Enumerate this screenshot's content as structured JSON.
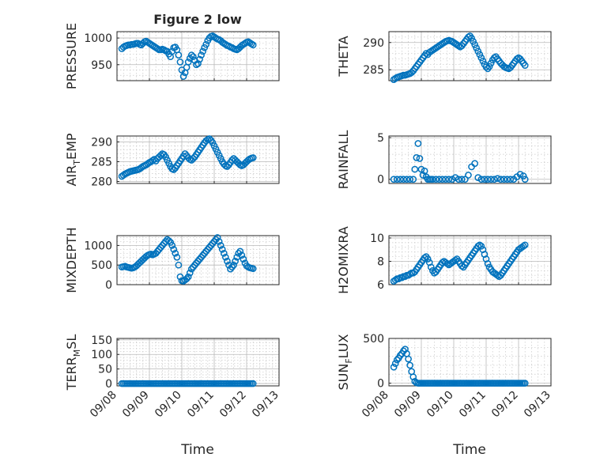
{
  "figure": {
    "title": "Figure 2 low",
    "marker_color": "#0072BD"
  },
  "chart_data": [
    {
      "type": "scatter",
      "ylabel": "PRESSURE",
      "ylabel_sub": "",
      "ylabel_tail": "",
      "xlabel": "",
      "xlim": [
        0,
        5
      ],
      "ylim": [
        920,
        1012
      ],
      "yticks": [
        950,
        1000
      ],
      "xticklabels": [],
      "x": [
        0.15,
        0.2,
        0.25,
        0.3,
        0.35,
        0.4,
        0.45,
        0.5,
        0.55,
        0.6,
        0.65,
        0.7,
        0.75,
        0.8,
        0.85,
        0.9,
        0.95,
        1.0,
        1.05,
        1.1,
        1.15,
        1.2,
        1.25,
        1.3,
        1.35,
        1.4,
        1.45,
        1.5,
        1.55,
        1.6,
        1.65,
        1.7,
        1.75,
        1.8,
        1.85,
        1.9,
        1.95,
        2.0,
        2.05,
        2.1,
        2.15,
        2.2,
        2.25,
        2.3,
        2.35,
        2.4,
        2.45,
        2.5,
        2.55,
        2.6,
        2.65,
        2.7,
        2.75,
        2.8,
        2.85,
        2.9,
        2.95,
        3.0,
        3.05,
        3.1,
        3.15,
        3.2,
        3.25,
        3.3,
        3.35,
        3.4,
        3.45,
        3.5,
        3.55,
        3.6,
        3.65,
        3.7,
        3.75,
        3.8,
        3.85,
        3.9,
        3.95,
        4.0,
        4.05,
        4.1,
        4.15,
        4.2
      ],
      "y": [
        980,
        983,
        985,
        986,
        987,
        987,
        988,
        988,
        989,
        990,
        990,
        988,
        987,
        990,
        993,
        994,
        992,
        990,
        988,
        986,
        984,
        982,
        980,
        978,
        978,
        979,
        978,
        976,
        975,
        970,
        965,
        975,
        982,
        983,
        978,
        968,
        955,
        940,
        928,
        935,
        945,
        955,
        962,
        968,
        965,
        958,
        950,
        952,
        960,
        968,
        975,
        982,
        988,
        995,
        1000,
        1003,
        1004,
        1002,
        1000,
        998,
        997,
        995,
        992,
        990,
        988,
        986,
        985,
        983,
        982,
        980,
        979,
        978,
        980,
        983,
        986,
        988,
        990,
        992,
        993,
        991,
        989,
        987
      ]
    },
    {
      "type": "scatter",
      "ylabel": "THETA",
      "ylabel_sub": "",
      "ylabel_tail": "",
      "xlabel": "",
      "xlim": [
        0,
        5
      ],
      "ylim": [
        283,
        292
      ],
      "yticks": [
        285,
        290
      ],
      "xticklabels": [],
      "x": [
        0.15,
        0.2,
        0.25,
        0.3,
        0.35,
        0.4,
        0.45,
        0.5,
        0.55,
        0.6,
        0.65,
        0.7,
        0.75,
        0.8,
        0.85,
        0.9,
        0.95,
        1.0,
        1.05,
        1.1,
        1.15,
        1.2,
        1.25,
        1.3,
        1.35,
        1.4,
        1.45,
        1.5,
        1.55,
        1.6,
        1.65,
        1.7,
        1.75,
        1.8,
        1.85,
        1.9,
        1.95,
        2.0,
        2.05,
        2.1,
        2.15,
        2.2,
        2.25,
        2.3,
        2.35,
        2.4,
        2.45,
        2.5,
        2.55,
        2.6,
        2.65,
        2.7,
        2.75,
        2.8,
        2.85,
        2.9,
        2.95,
        3.0,
        3.05,
        3.1,
        3.15,
        3.2,
        3.25,
        3.3,
        3.35,
        3.4,
        3.45,
        3.5,
        3.55,
        3.6,
        3.65,
        3.7,
        3.75,
        3.8,
        3.85,
        3.9,
        3.95,
        4.0,
        4.05,
        4.1,
        4.15,
        4.2
      ],
      "y": [
        283.2,
        283.4,
        283.6,
        283.7,
        283.8,
        283.9,
        284.0,
        284.0,
        284.1,
        284.2,
        284.3,
        284.5,
        284.8,
        285.2,
        285.6,
        286.0,
        286.4,
        286.8,
        287.2,
        287.6,
        288.0,
        287.8,
        288.2,
        288.4,
        288.6,
        288.8,
        289.0,
        289.2,
        289.4,
        289.6,
        289.8,
        290.0,
        290.2,
        290.3,
        290.4,
        290.3,
        290.2,
        290.0,
        289.8,
        289.6,
        289.4,
        289.2,
        289.4,
        289.8,
        290.2,
        290.6,
        291.0,
        291.2,
        290.8,
        290.2,
        289.6,
        289.0,
        288.4,
        287.8,
        287.2,
        286.6,
        286.0,
        285.5,
        285.2,
        285.6,
        286.2,
        286.8,
        287.2,
        287.4,
        287.0,
        286.6,
        286.2,
        285.9,
        285.6,
        285.4,
        285.3,
        285.2,
        285.4,
        285.8,
        286.2,
        286.6,
        287.0,
        287.2,
        287.0,
        286.6,
        286.2,
        285.8
      ]
    },
    {
      "type": "scatter",
      "ylabel": "AIR",
      "ylabel_sub": "T",
      "ylabel_tail": "EMP",
      "xlabel": "",
      "xlim": [
        0,
        5
      ],
      "ylim": [
        279.5,
        291.5
      ],
      "yticks": [
        280,
        285,
        290
      ],
      "xticklabels": [],
      "x": [
        0.15,
        0.2,
        0.25,
        0.3,
        0.35,
        0.4,
        0.45,
        0.5,
        0.55,
        0.6,
        0.65,
        0.7,
        0.75,
        0.8,
        0.85,
        0.9,
        0.95,
        1.0,
        1.05,
        1.1,
        1.15,
        1.2,
        1.25,
        1.3,
        1.35,
        1.4,
        1.45,
        1.5,
        1.55,
        1.6,
        1.65,
        1.7,
        1.75,
        1.8,
        1.85,
        1.9,
        1.95,
        2.0,
        2.05,
        2.1,
        2.15,
        2.2,
        2.25,
        2.3,
        2.35,
        2.4,
        2.45,
        2.5,
        2.55,
        2.6,
        2.65,
        2.7,
        2.75,
        2.8,
        2.85,
        2.9,
        2.95,
        3.0,
        3.05,
        3.1,
        3.15,
        3.2,
        3.25,
        3.3,
        3.35,
        3.4,
        3.45,
        3.5,
        3.55,
        3.6,
        3.65,
        3.7,
        3.75,
        3.8,
        3.85,
        3.9,
        3.95,
        4.0,
        4.05,
        4.1,
        4.15,
        4.2
      ],
      "y": [
        281.3,
        281.6,
        281.9,
        282.1,
        282.3,
        282.5,
        282.6,
        282.7,
        282.8,
        282.9,
        283.0,
        283.2,
        283.5,
        283.8,
        284.0,
        284.2,
        284.5,
        284.8,
        285.0,
        285.3,
        285.6,
        285.2,
        285.8,
        286.2,
        286.6,
        287.0,
        286.8,
        286.2,
        285.4,
        284.6,
        283.8,
        283.2,
        283.0,
        283.4,
        284.0,
        284.6,
        285.2,
        285.8,
        286.4,
        287.0,
        286.5,
        286.0,
        285.6,
        285.4,
        285.8,
        286.2,
        286.8,
        287.4,
        288.0,
        288.6,
        289.2,
        289.8,
        290.3,
        290.6,
        290.8,
        290.4,
        289.8,
        289.0,
        288.2,
        287.4,
        286.6,
        285.8,
        285.0,
        284.4,
        284.0,
        283.8,
        284.2,
        284.8,
        285.4,
        285.8,
        285.4,
        285.0,
        284.6,
        284.2,
        284.0,
        284.2,
        284.6,
        285.0,
        285.4,
        285.7,
        285.9,
        286.0
      ]
    },
    {
      "type": "scatter",
      "ylabel": "RAINFALL",
      "ylabel_sub": "",
      "ylabel_tail": "",
      "xlabel": "",
      "xlim": [
        0,
        5
      ],
      "ylim": [
        -0.5,
        5.2
      ],
      "yticks": [
        0,
        5
      ],
      "xticklabels": [],
      "x": [
        0.15,
        0.25,
        0.35,
        0.45,
        0.55,
        0.65,
        0.75,
        0.8,
        0.85,
        0.9,
        0.95,
        1.0,
        1.05,
        1.1,
        1.15,
        1.2,
        1.25,
        1.3,
        1.35,
        1.45,
        1.55,
        1.65,
        1.75,
        1.85,
        1.95,
        2.05,
        2.15,
        2.25,
        2.35,
        2.45,
        2.55,
        2.65,
        2.75,
        2.85,
        2.95,
        3.05,
        3.15,
        3.25,
        3.35,
        3.45,
        3.55,
        3.65,
        3.75,
        3.85,
        3.95,
        4.05,
        4.15,
        4.2
      ],
      "y": [
        0,
        0,
        0,
        0,
        0,
        0,
        0,
        1.2,
        2.6,
        4.3,
        2.5,
        1.2,
        0.5,
        1.0,
        0.3,
        0,
        0,
        0,
        0,
        0,
        0,
        0,
        0,
        0,
        0,
        0.2,
        0,
        0,
        0,
        0.5,
        1.5,
        1.9,
        0.2,
        0,
        0,
        0,
        0,
        0,
        0.1,
        0,
        0,
        0,
        0,
        0,
        0.3,
        0.6,
        0.4,
        0
      ]
    },
    {
      "type": "scatter",
      "ylabel": "MIXDEPTH",
      "ylabel_sub": "",
      "ylabel_tail": "",
      "xlabel": "",
      "xlim": [
        0,
        5
      ],
      "ylim": [
        0,
        1250
      ],
      "yticks": [
        0,
        500,
        1000
      ],
      "xticklabels": [],
      "x": [
        0.15,
        0.2,
        0.25,
        0.3,
        0.35,
        0.4,
        0.45,
        0.5,
        0.55,
        0.6,
        0.65,
        0.7,
        0.75,
        0.8,
        0.85,
        0.9,
        0.95,
        1.0,
        1.05,
        1.1,
        1.15,
        1.2,
        1.25,
        1.3,
        1.35,
        1.4,
        1.45,
        1.5,
        1.55,
        1.6,
        1.65,
        1.7,
        1.75,
        1.8,
        1.85,
        1.9,
        1.95,
        2.0,
        2.05,
        2.1,
        2.15,
        2.2,
        2.25,
        2.3,
        2.35,
        2.4,
        2.45,
        2.5,
        2.55,
        2.6,
        2.65,
        2.7,
        2.75,
        2.8,
        2.85,
        2.9,
        2.95,
        3.0,
        3.05,
        3.1,
        3.15,
        3.2,
        3.25,
        3.3,
        3.35,
        3.4,
        3.45,
        3.5,
        3.55,
        3.6,
        3.65,
        3.7,
        3.75,
        3.8,
        3.85,
        3.9,
        3.95,
        4.0,
        4.05,
        4.1,
        4.15,
        4.2
      ],
      "y": [
        450,
        460,
        470,
        450,
        440,
        430,
        420,
        430,
        450,
        480,
        520,
        560,
        600,
        640,
        680,
        720,
        750,
        770,
        780,
        760,
        780,
        800,
        850,
        900,
        950,
        1000,
        1050,
        1100,
        1150,
        1120,
        1080,
        1000,
        900,
        800,
        700,
        500,
        200,
        100,
        90,
        120,
        150,
        200,
        300,
        400,
        450,
        500,
        550,
        600,
        650,
        700,
        750,
        800,
        850,
        900,
        950,
        1000,
        1050,
        1100,
        1150,
        1200,
        1100,
        1000,
        900,
        800,
        700,
        600,
        500,
        400,
        450,
        500,
        600,
        700,
        800,
        850,
        750,
        650,
        550,
        480,
        450,
        430,
        420,
        410
      ]
    },
    {
      "type": "scatter",
      "ylabel": "H2OMIXRA",
      "ylabel_sub": "",
      "ylabel_tail": "",
      "xlabel": "",
      "xlim": [
        0,
        5
      ],
      "ylim": [
        6,
        10.2
      ],
      "yticks": [
        6,
        8,
        10
      ],
      "xticklabels": [],
      "x": [
        0.15,
        0.2,
        0.25,
        0.3,
        0.35,
        0.4,
        0.45,
        0.5,
        0.55,
        0.6,
        0.65,
        0.7,
        0.75,
        0.8,
        0.85,
        0.9,
        0.95,
        1.0,
        1.05,
        1.1,
        1.15,
        1.2,
        1.25,
        1.3,
        1.35,
        1.4,
        1.45,
        1.5,
        1.55,
        1.6,
        1.65,
        1.7,
        1.75,
        1.8,
        1.85,
        1.9,
        1.95,
        2.0,
        2.05,
        2.1,
        2.15,
        2.2,
        2.25,
        2.3,
        2.35,
        2.4,
        2.45,
        2.5,
        2.55,
        2.6,
        2.65,
        2.7,
        2.75,
        2.8,
        2.85,
        2.9,
        2.95,
        3.0,
        3.05,
        3.1,
        3.15,
        3.2,
        3.25,
        3.3,
        3.35,
        3.4,
        3.45,
        3.5,
        3.55,
        3.6,
        3.65,
        3.7,
        3.75,
        3.8,
        3.85,
        3.9,
        3.95,
        4.0,
        4.05,
        4.1,
        4.15,
        4.2
      ],
      "y": [
        6.3,
        6.4,
        6.5,
        6.5,
        6.6,
        6.6,
        6.7,
        6.7,
        6.8,
        6.8,
        6.9,
        7.0,
        7.0,
        7.1,
        7.3,
        7.5,
        7.7,
        7.9,
        8.1,
        8.3,
        8.4,
        8.2,
        7.9,
        7.5,
        7.2,
        7.0,
        7.1,
        7.3,
        7.5,
        7.7,
        7.9,
        8.0,
        7.9,
        7.8,
        7.7,
        7.8,
        7.9,
        8.0,
        8.1,
        8.2,
        8.0,
        7.8,
        7.6,
        7.5,
        7.7,
        7.9,
        8.1,
        8.3,
        8.5,
        8.7,
        8.9,
        9.1,
        9.3,
        9.4,
        9.3,
        9.0,
        8.6,
        8.2,
        7.8,
        7.5,
        7.3,
        7.1,
        7.0,
        6.9,
        6.8,
        6.7,
        6.8,
        7.0,
        7.2,
        7.4,
        7.6,
        7.8,
        8.0,
        8.2,
        8.4,
        8.6,
        8.8,
        9.0,
        9.1,
        9.2,
        9.3,
        9.4
      ]
    },
    {
      "type": "scatter",
      "ylabel": "TERR",
      "ylabel_sub": "M",
      "ylabel_tail": "SL",
      "xlabel": "",
      "xlim": [
        0,
        5
      ],
      "ylim": [
        -8,
        155
      ],
      "yticks": [
        0,
        50,
        100,
        150
      ],
      "xticklabels": [
        "09/08",
        "09/09",
        "09/10",
        "09/11",
        "09/12",
        "09/13"
      ],
      "x": [
        0.15,
        0.2,
        0.25,
        0.3,
        0.35,
        0.4,
        0.45,
        0.5,
        0.55,
        0.6,
        0.65,
        0.7,
        0.75,
        0.8,
        0.85,
        0.9,
        0.95,
        1.0,
        1.05,
        1.1,
        1.15,
        1.2,
        1.25,
        1.3,
        1.35,
        1.4,
        1.45,
        1.5,
        1.55,
        1.6,
        1.65,
        1.7,
        1.75,
        1.8,
        1.85,
        1.9,
        1.95,
        2.0,
        2.05,
        2.1,
        2.15,
        2.2,
        2.25,
        2.3,
        2.35,
        2.4,
        2.45,
        2.5,
        2.55,
        2.6,
        2.65,
        2.7,
        2.75,
        2.8,
        2.85,
        2.9,
        2.95,
        3.0,
        3.05,
        3.1,
        3.15,
        3.2,
        3.25,
        3.3,
        3.35,
        3.4,
        3.45,
        3.5,
        3.55,
        3.6,
        3.65,
        3.7,
        3.75,
        3.8,
        3.85,
        3.9,
        3.95,
        4.0,
        4.05,
        4.1,
        4.15,
        4.2
      ],
      "y": [
        0,
        0,
        0,
        0,
        0,
        0,
        0,
        0,
        0,
        0,
        0,
        0,
        0,
        0,
        0,
        0,
        0,
        0,
        0,
        0,
        0,
        0,
        0,
        0,
        0,
        0,
        0,
        0,
        0,
        0,
        0,
        0,
        0,
        0,
        0,
        0,
        0,
        0,
        0,
        0,
        0,
        0,
        0,
        0,
        0,
        0,
        0,
        0,
        0,
        0,
        0,
        0,
        0,
        0,
        0,
        0,
        0,
        0,
        0,
        0,
        0,
        0,
        0,
        0,
        0,
        0,
        0,
        0,
        0,
        0,
        0,
        0,
        0,
        0,
        0,
        0,
        0,
        0,
        0,
        0,
        0,
        0
      ]
    },
    {
      "type": "scatter",
      "ylabel": "SUN",
      "ylabel_sub": "F",
      "ylabel_tail": "LUX",
      "xlabel": "",
      "xlim": [
        0,
        5
      ],
      "ylim": [
        -30,
        500
      ],
      "yticks": [
        0,
        500
      ],
      "xticklabels": [
        "09/08",
        "09/09",
        "09/10",
        "09/11",
        "09/12",
        "09/13"
      ],
      "x": [
        0.15,
        0.2,
        0.25,
        0.3,
        0.35,
        0.4,
        0.45,
        0.5,
        0.55,
        0.6,
        0.65,
        0.7,
        0.75,
        0.8,
        0.85,
        0.9,
        0.95,
        1.0,
        1.05,
        1.1,
        1.15,
        1.2,
        1.25,
        1.3,
        1.35,
        1.4,
        1.45,
        1.5,
        1.55,
        1.6,
        1.65,
        1.7,
        1.75,
        1.8,
        1.85,
        1.9,
        1.95,
        2.0,
        2.05,
        2.1,
        2.15,
        2.2,
        2.25,
        2.3,
        2.35,
        2.4,
        2.45,
        2.5,
        2.55,
        2.6,
        2.65,
        2.7,
        2.75,
        2.8,
        2.85,
        2.9,
        2.95,
        3.0,
        3.05,
        3.1,
        3.15,
        3.2,
        3.25,
        3.3,
        3.35,
        3.4,
        3.45,
        3.5,
        3.55,
        3.6,
        3.65,
        3.7,
        3.75,
        3.8,
        3.85,
        3.9,
        3.95,
        4.0,
        4.05,
        4.1,
        4.15,
        4.2
      ],
      "y": [
        180,
        220,
        260,
        280,
        310,
        330,
        360,
        380,
        330,
        270,
        200,
        130,
        70,
        20,
        5,
        0,
        0,
        0,
        0,
        0,
        0,
        0,
        0,
        0,
        0,
        0,
        0,
        0,
        0,
        0,
        0,
        0,
        0,
        0,
        0,
        0,
        0,
        0,
        0,
        0,
        0,
        0,
        0,
        0,
        0,
        0,
        0,
        0,
        0,
        0,
        0,
        0,
        0,
        0,
        0,
        0,
        0,
        0,
        0,
        0,
        0,
        0,
        0,
        0,
        0,
        0,
        0,
        0,
        0,
        0,
        0,
        0,
        0,
        0,
        0,
        0,
        0,
        0,
        0,
        0,
        0,
        0
      ]
    }
  ],
  "shared": {
    "xlabel": "Time"
  }
}
